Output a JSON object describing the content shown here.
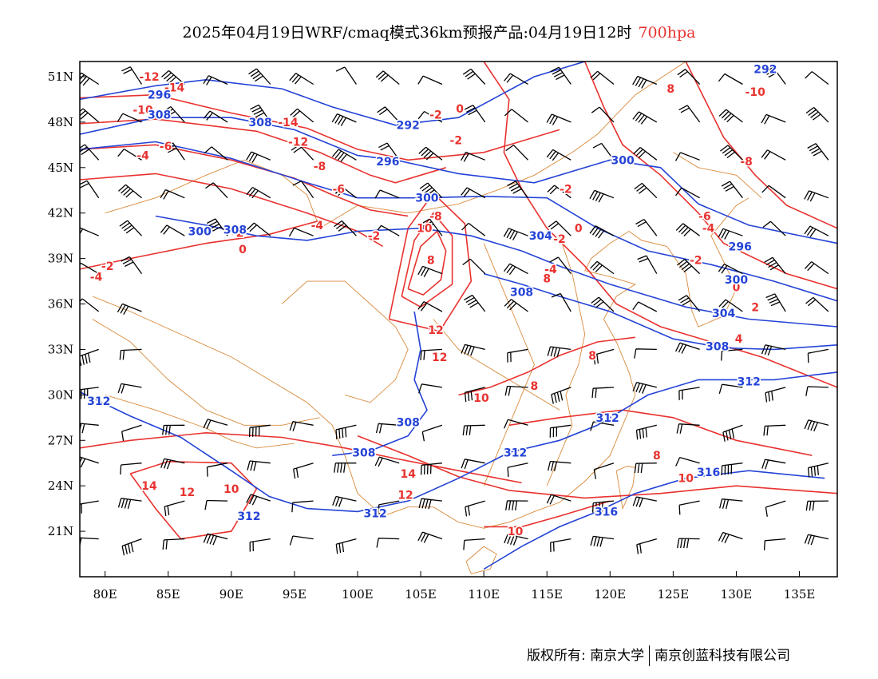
{
  "title": {
    "main": "2025年04月19日WRF/cmaq模式36km预报产品:04月19日12时",
    "level": "700hpa",
    "level_color": "#e8322f"
  },
  "axes": {
    "lon_labels": [
      "80E",
      "85E",
      "90E",
      "95E",
      "100E",
      "105E",
      "110E",
      "115E",
      "120E",
      "125E",
      "130E",
      "135E"
    ],
    "lon_values": [
      80,
      85,
      90,
      95,
      100,
      105,
      110,
      115,
      120,
      125,
      130,
      135
    ],
    "lat_labels": [
      "51N",
      "48N",
      "45N",
      "42N",
      "39N",
      "36N",
      "33N",
      "30N",
      "27N",
      "24N",
      "21N"
    ],
    "lat_values": [
      51,
      48,
      45,
      42,
      39,
      36,
      33,
      30,
      27,
      24,
      21
    ],
    "lon_range": [
      78,
      138
    ],
    "lat_range": [
      18,
      52
    ]
  },
  "colors": {
    "temperature": "#e8322f",
    "geopotential_height": "#2443d6",
    "boundaries": "#d98a3c",
    "wind_barbs": "#000000",
    "frame": "#000000"
  },
  "isotherm_labels": [
    {
      "text": "-12",
      "lon": 83.5,
      "lat": 51.0
    },
    {
      "text": "-14",
      "lon": 85.5,
      "lat": 50.3
    },
    {
      "text": "-10",
      "lon": 83.0,
      "lat": 48.8
    },
    {
      "text": "-6",
      "lon": 84.8,
      "lat": 46.4
    },
    {
      "text": "-4",
      "lon": 83.0,
      "lat": 45.8
    },
    {
      "text": "-14",
      "lon": 94.5,
      "lat": 48.0
    },
    {
      "text": "-12",
      "lon": 95.3,
      "lat": 46.7
    },
    {
      "text": "-8",
      "lon": 97.0,
      "lat": 45.1
    },
    {
      "text": "-6",
      "lon": 98.5,
      "lat": 43.6
    },
    {
      "text": "-4",
      "lon": 96.8,
      "lat": 41.2
    },
    {
      "text": "-2",
      "lon": 101.3,
      "lat": 40.5
    },
    {
      "text": "-2",
      "lon": 90.5,
      "lat": 40.7
    },
    {
      "text": "0",
      "lon": 90.9,
      "lat": 39.6
    },
    {
      "text": "-2",
      "lon": 80.2,
      "lat": 38.5
    },
    {
      "text": "-4",
      "lon": 79.3,
      "lat": 37.8
    },
    {
      "text": "-2",
      "lon": 106.2,
      "lat": 48.5
    },
    {
      "text": "0",
      "lon": 108.1,
      "lat": 48.9
    },
    {
      "text": "-2",
      "lon": 107.8,
      "lat": 46.8
    },
    {
      "text": "-2",
      "lon": 116.5,
      "lat": 43.6
    },
    {
      "text": "-8",
      "lon": 106.2,
      "lat": 41.8
    },
    {
      "text": "10",
      "lon": 105.3,
      "lat": 41.0
    },
    {
      "text": "8",
      "lon": 105.8,
      "lat": 38.9
    },
    {
      "text": "12",
      "lon": 106.2,
      "lat": 34.3
    },
    {
      "text": "12",
      "lon": 106.5,
      "lat": 32.5
    },
    {
      "text": "10",
      "lon": 109.8,
      "lat": 29.8
    },
    {
      "text": "8",
      "lon": 114.0,
      "lat": 30.6
    },
    {
      "text": "8",
      "lon": 118.6,
      "lat": 32.6
    },
    {
      "text": "8",
      "lon": 115.0,
      "lat": 37.7
    },
    {
      "text": "-4",
      "lon": 115.3,
      "lat": 38.3
    },
    {
      "text": "-2",
      "lon": 116.0,
      "lat": 40.3
    },
    {
      "text": "0",
      "lon": 117.5,
      "lat": 41.0
    },
    {
      "text": "8",
      "lon": 124.8,
      "lat": 50.2
    },
    {
      "text": "-10",
      "lon": 131.5,
      "lat": 50.0
    },
    {
      "text": "-6",
      "lon": 127.5,
      "lat": 41.8
    },
    {
      "text": "-4",
      "lon": 127.8,
      "lat": 41.0
    },
    {
      "text": "-2",
      "lon": 126.8,
      "lat": 38.9
    },
    {
      "text": "0",
      "lon": 130.0,
      "lat": 37.1
    },
    {
      "text": "-8",
      "lon": 130.8,
      "lat": 45.4
    },
    {
      "text": "2",
      "lon": 131.5,
      "lat": 35.8
    },
    {
      "text": "4",
      "lon": 130.2,
      "lat": 33.7
    },
    {
      "text": "8",
      "lon": 123.7,
      "lat": 26.0
    },
    {
      "text": "10",
      "lon": 126.0,
      "lat": 24.5
    },
    {
      "text": "14",
      "lon": 83.5,
      "lat": 24.0
    },
    {
      "text": "12",
      "lon": 86.5,
      "lat": 23.6
    },
    {
      "text": "10",
      "lon": 90.0,
      "lat": 23.8
    },
    {
      "text": "14",
      "lon": 104.0,
      "lat": 24.8
    },
    {
      "text": "12",
      "lon": 103.8,
      "lat": 23.4
    },
    {
      "text": "10",
      "lon": 112.5,
      "lat": 21.0
    }
  ],
  "isoheight_labels": [
    {
      "text": "292",
      "lon": 132.3,
      "lat": 51.5
    },
    {
      "text": "296",
      "lon": 84.3,
      "lat": 49.8
    },
    {
      "text": "308",
      "lon": 84.3,
      "lat": 48.5
    },
    {
      "text": "308",
      "lon": 92.3,
      "lat": 48.0
    },
    {
      "text": "292",
      "lon": 104.0,
      "lat": 47.8
    },
    {
      "text": "296",
      "lon": 102.4,
      "lat": 45.4
    },
    {
      "text": "300",
      "lon": 105.5,
      "lat": 43.0
    },
    {
      "text": "300",
      "lon": 121.0,
      "lat": 45.5
    },
    {
      "text": "300",
      "lon": 87.5,
      "lat": 40.8
    },
    {
      "text": "308",
      "lon": 90.3,
      "lat": 40.9
    },
    {
      "text": "304",
      "lon": 114.5,
      "lat": 40.5
    },
    {
      "text": "308",
      "lon": 113.0,
      "lat": 36.8
    },
    {
      "text": "296",
      "lon": 130.3,
      "lat": 39.8
    },
    {
      "text": "300",
      "lon": 130.0,
      "lat": 37.6
    },
    {
      "text": "304",
      "lon": 129.0,
      "lat": 35.4
    },
    {
      "text": "308",
      "lon": 128.5,
      "lat": 33.2
    },
    {
      "text": "312",
      "lon": 131.0,
      "lat": 30.9
    },
    {
      "text": "312",
      "lon": 79.5,
      "lat": 29.6
    },
    {
      "text": "308",
      "lon": 104.0,
      "lat": 28.2
    },
    {
      "text": "308",
      "lon": 100.5,
      "lat": 26.2
    },
    {
      "text": "312",
      "lon": 112.5,
      "lat": 26.2
    },
    {
      "text": "312",
      "lon": 119.8,
      "lat": 28.5
    },
    {
      "text": "316",
      "lon": 127.8,
      "lat": 24.9
    },
    {
      "text": "316",
      "lon": 119.7,
      "lat": 22.3
    },
    {
      "text": "312",
      "lon": 91.4,
      "lat": 22.0
    },
    {
      "text": "312",
      "lon": 101.4,
      "lat": 22.2
    }
  ],
  "footer": {
    "left": "版权所有: 南京大学",
    "right": "南京创蓝科技有限公司"
  }
}
